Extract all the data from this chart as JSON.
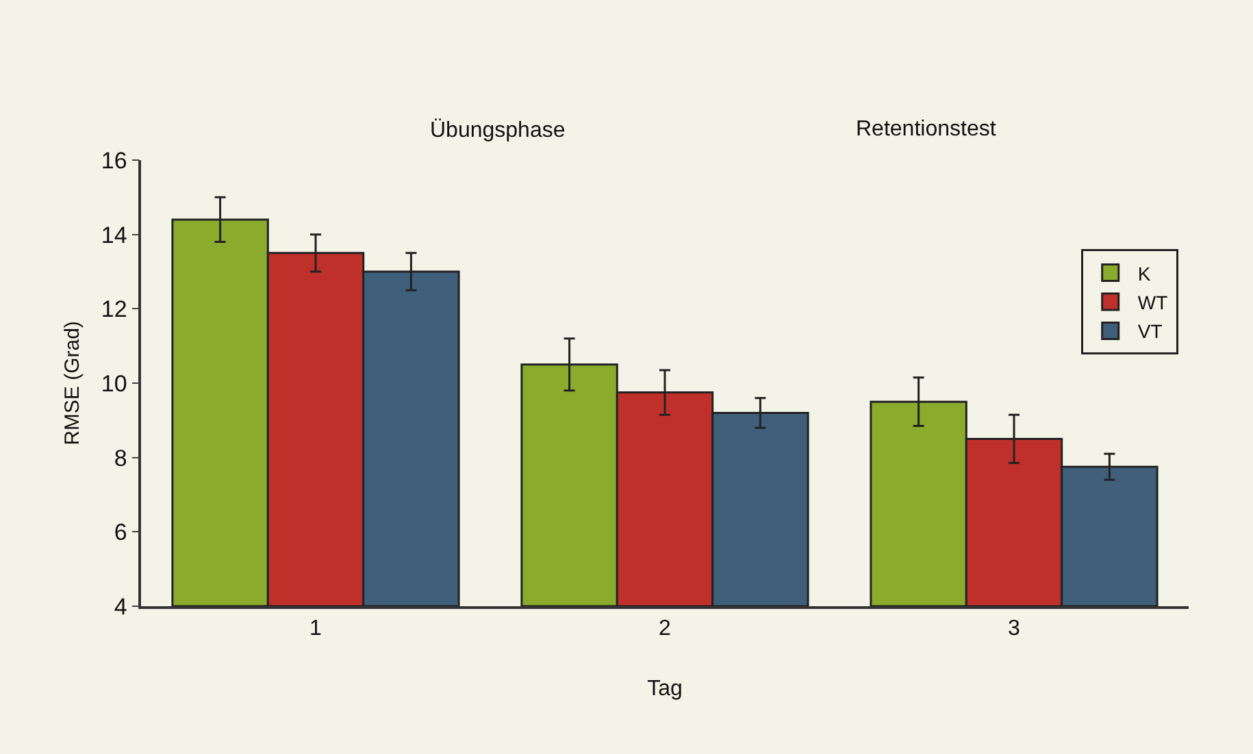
{
  "chart_data": {
    "type": "bar",
    "xlabel": "Tag",
    "ylabel": "RMSE (Grad)",
    "annotations": [
      "Übungsphase",
      "Retentionstest"
    ],
    "categories": [
      "1",
      "2",
      "3"
    ],
    "series": [
      {
        "name": "K",
        "color": "#8aab2c",
        "values": [
          14.4,
          10.5,
          9.5
        ],
        "errors": [
          0.6,
          0.7,
          0.65
        ]
      },
      {
        "name": "WT",
        "color": "#c0302a",
        "values": [
          13.5,
          9.75,
          8.5
        ],
        "errors": [
          0.5,
          0.6,
          0.65
        ]
      },
      {
        "name": "VT",
        "color": "#3f5f7a",
        "values": [
          13.0,
          9.2,
          7.75
        ],
        "errors": [
          0.5,
          0.4,
          0.35
        ]
      }
    ],
    "ylim": [
      4,
      16
    ],
    "yticks": [
      4,
      6,
      8,
      10,
      12,
      14,
      16
    ],
    "grid": false,
    "legend": "right"
  }
}
